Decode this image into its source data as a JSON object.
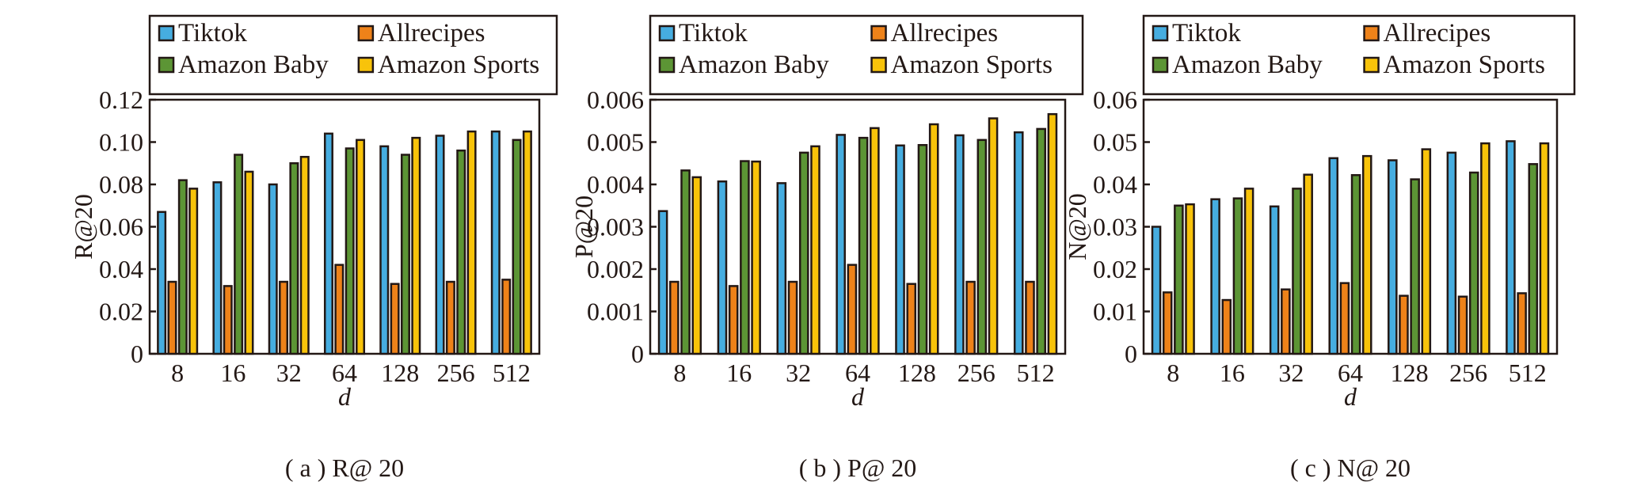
{
  "colors": {
    "Tiktok": "#46ADE0",
    "Allrecipes": "#EE8219",
    "Amazon Baby": "#5C9535",
    "Amazon Sports": "#F8C30A",
    "stroke": "#231815"
  },
  "chart_data": [
    {
      "type": "bar",
      "title": "",
      "caption": "( a ) R@ 20",
      "xlabel": "d",
      "ylabel": "R@20",
      "categories": [
        "8",
        "16",
        "32",
        "64",
        "128",
        "256",
        "512"
      ],
      "ylim": [
        0,
        0.12
      ],
      "yticks": [
        "0",
        "0.02",
        "0.04",
        "0.06",
        "0.08",
        "0.10",
        "0.12"
      ],
      "ytick_values": [
        0,
        0.02,
        0.04,
        0.06,
        0.08,
        0.1,
        0.12
      ],
      "legend": "top",
      "series": [
        {
          "name": "Tiktok",
          "values": [
            0.067,
            0.081,
            0.08,
            0.104,
            0.098,
            0.103,
            0.105
          ]
        },
        {
          "name": "Allrecipes",
          "values": [
            0.034,
            0.032,
            0.034,
            0.042,
            0.033,
            0.034,
            0.035
          ]
        },
        {
          "name": "Amazon Baby",
          "values": [
            0.082,
            0.094,
            0.09,
            0.097,
            0.094,
            0.096,
            0.101
          ]
        },
        {
          "name": "Amazon Sports",
          "values": [
            0.078,
            0.086,
            0.093,
            0.101,
            0.102,
            0.105,
            0.105
          ]
        }
      ]
    },
    {
      "type": "bar",
      "title": "",
      "caption": "( b ) P@ 20",
      "xlabel": "d",
      "ylabel": "P@20",
      "categories": [
        "8",
        "16",
        "32",
        "64",
        "128",
        "256",
        "512"
      ],
      "ylim": [
        0,
        0.006
      ],
      "yticks": [
        "0",
        "0.001",
        "0.002",
        "0.003",
        "0.004",
        "0.005",
        "0.006"
      ],
      "ytick_values": [
        0,
        0.001,
        0.002,
        0.003,
        0.004,
        0.005,
        0.006
      ],
      "legend": "top",
      "series": [
        {
          "name": "Tiktok",
          "values": [
            0.00337,
            0.00407,
            0.00403,
            0.00517,
            0.00492,
            0.00516,
            0.00523
          ]
        },
        {
          "name": "Allrecipes",
          "values": [
            0.0017,
            0.0016,
            0.0017,
            0.0021,
            0.00165,
            0.0017,
            0.0017
          ]
        },
        {
          "name": "Amazon Baby",
          "values": [
            0.00433,
            0.00455,
            0.00475,
            0.0051,
            0.00493,
            0.00505,
            0.00531
          ]
        },
        {
          "name": "Amazon Sports",
          "values": [
            0.00417,
            0.00454,
            0.0049,
            0.00533,
            0.00542,
            0.00556,
            0.00566
          ]
        }
      ]
    },
    {
      "type": "bar",
      "title": "",
      "caption": "( c ) N@ 20",
      "xlabel": "d",
      "ylabel": "N@20",
      "categories": [
        "8",
        "16",
        "32",
        "64",
        "128",
        "256",
        "512"
      ],
      "ylim": [
        0,
        0.06
      ],
      "yticks": [
        "0",
        "0.01",
        "0.02",
        "0.03",
        "0.04",
        "0.05",
        "0.06"
      ],
      "ytick_values": [
        0,
        0.01,
        0.02,
        0.03,
        0.04,
        0.05,
        0.06
      ],
      "legend": "top",
      "series": [
        {
          "name": "Tiktok",
          "values": [
            0.03,
            0.0365,
            0.0348,
            0.0462,
            0.0457,
            0.0475,
            0.0502
          ]
        },
        {
          "name": "Allrecipes",
          "values": [
            0.0145,
            0.0127,
            0.0152,
            0.0167,
            0.0137,
            0.0135,
            0.0143
          ]
        },
        {
          "name": "Amazon Baby",
          "values": [
            0.035,
            0.0367,
            0.039,
            0.0422,
            0.0412,
            0.0428,
            0.0448
          ]
        },
        {
          "name": "Amazon Sports",
          "values": [
            0.0353,
            0.039,
            0.0423,
            0.0467,
            0.0483,
            0.0497,
            0.0497
          ]
        }
      ]
    }
  ]
}
